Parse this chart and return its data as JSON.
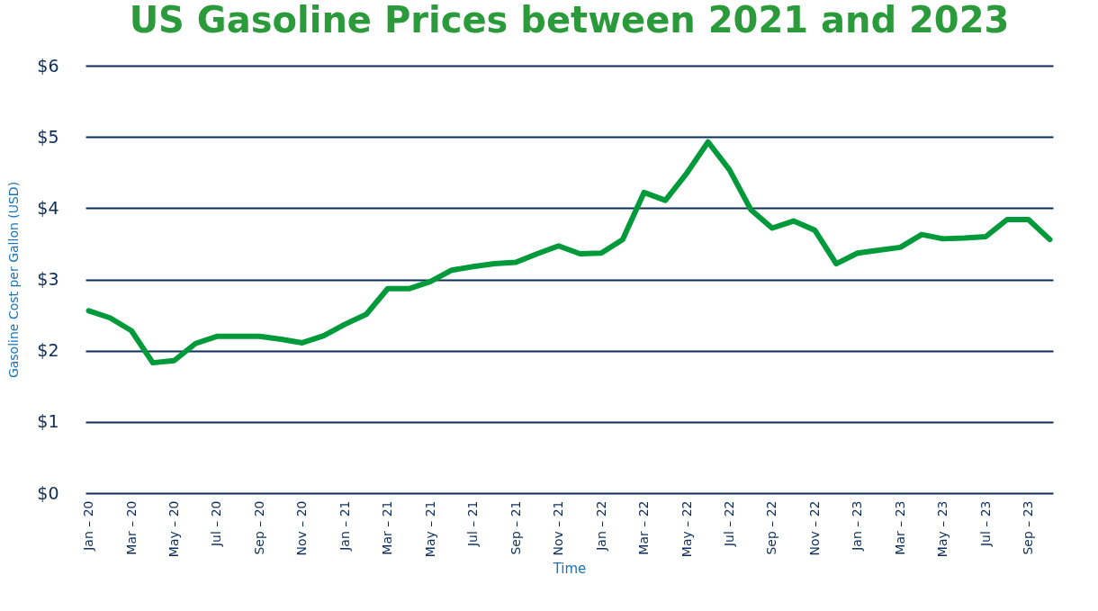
{
  "chart_data": {
    "type": "line",
    "title": "US Gasoline Prices between 2021 and 2023",
    "xlabel": "Time",
    "ylabel": "Gasoline Cost per Gallon (USD)",
    "categories": [
      "Jan – 20",
      null,
      "Mar – 20",
      null,
      "May – 20",
      null,
      "Jul – 20",
      null,
      "Sep – 20",
      null,
      "Nov – 20",
      null,
      "Jan – 21",
      null,
      "Mar – 21",
      null,
      "May – 21",
      null,
      "Jul – 21",
      null,
      "Sep – 21",
      null,
      "Nov – 21",
      null,
      "Jan – 22",
      null,
      "Mar – 22",
      null,
      "May – 22",
      null,
      "Jul – 22",
      null,
      "Sep – 22",
      null,
      "Nov – 22",
      null,
      "Jan – 23",
      null,
      "Mar – 23",
      null,
      "May – 23",
      null,
      "Jul – 23",
      null,
      "Sep – 23",
      null
    ],
    "series": [
      {
        "color": "#009a3a",
        "values": [
          2.56,
          2.46,
          2.28,
          1.83,
          1.86,
          2.1,
          2.2,
          2.2,
          2.2,
          2.16,
          2.11,
          2.21,
          2.37,
          2.51,
          2.87,
          2.87,
          2.97,
          3.13,
          3.18,
          3.22,
          3.24,
          3.36,
          3.47,
          3.36,
          3.37,
          3.56,
          4.22,
          4.11,
          4.49,
          4.93,
          4.54,
          3.98,
          3.72,
          3.82,
          3.69,
          3.22,
          3.37,
          3.41,
          3.45,
          3.63,
          3.57,
          3.58,
          3.6,
          3.84,
          3.84,
          3.56
        ]
      }
    ],
    "ylim": [
      0,
      6
    ],
    "yticks": [
      {
        "value": 0,
        "label": "$0"
      },
      {
        "value": 1,
        "label": "$1"
      },
      {
        "value": 2,
        "label": "$2"
      },
      {
        "value": 3,
        "label": "$3"
      },
      {
        "value": 4,
        "label": "$4"
      },
      {
        "value": 5,
        "label": "$5"
      },
      {
        "value": 6,
        "label": "$6"
      }
    ],
    "grid": "y"
  }
}
